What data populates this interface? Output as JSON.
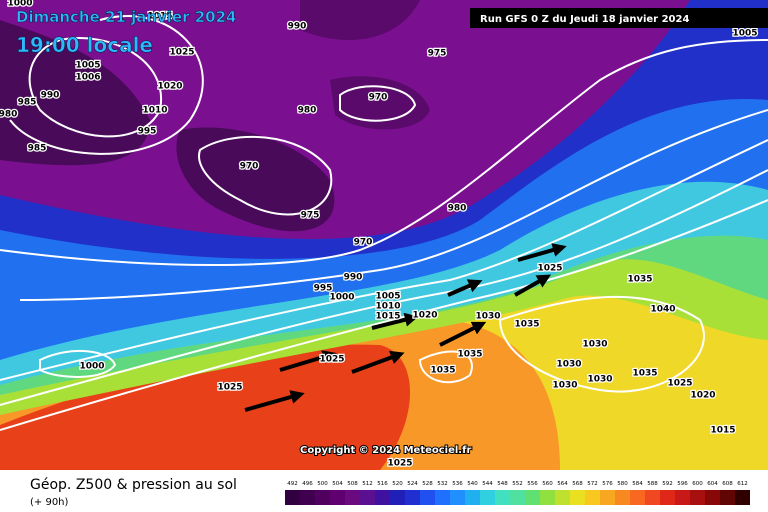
{
  "header": {
    "date": "Dimanche 21 janvier 2024",
    "time": "19:00 locale",
    "run": "Run GFS 0 Z du Jeudi 18 janvier 2024"
  },
  "isobar_labels": [
    1000,
    1015,
    1025,
    1005,
    1006,
    1020,
    990,
    985,
    980,
    1010,
    995,
    985,
    990,
    975,
    970,
    980,
    970,
    975,
    980,
    970,
    990,
    995,
    1000,
    1005,
    1010,
    1015,
    1020,
    1030,
    1025,
    1035,
    1040,
    1035,
    1030,
    1035,
    1035,
    1030,
    1030,
    1030,
    1035,
    1025,
    1020,
    1015,
    1025,
    1025,
    1000,
    1005,
    1025
  ],
  "copyright": "Copyright © 2024 Meteociel.fr",
  "footer": {
    "title": "Géop. Z500 & pression au sol",
    "lead": "(+ 90h)"
  },
  "colorbar": {
    "levels": [
      492,
      496,
      500,
      504,
      508,
      512,
      516,
      520,
      524,
      528,
      532,
      536,
      540,
      544,
      548,
      552,
      556,
      560,
      564,
      568,
      572,
      576,
      580,
      584,
      588,
      592,
      596,
      600,
      604,
      608,
      612
    ],
    "colors": [
      "#300040",
      "#40004f",
      "#50005f",
      "#600070",
      "#6a0a80",
      "#5a1090",
      "#4010a0",
      "#2020b8",
      "#2030d0",
      "#2050f0",
      "#2070ff",
      "#2090ff",
      "#20b0f0",
      "#30d0e0",
      "#40e0c0",
      "#50e0a0",
      "#60e070",
      "#90e040",
      "#c0e030",
      "#e8e020",
      "#f8c820",
      "#f8a820",
      "#f88820",
      "#f86820",
      "#f04820",
      "#e02818",
      "#c81818",
      "#a81010",
      "#880808",
      "#600404",
      "#300000"
    ]
  }
}
